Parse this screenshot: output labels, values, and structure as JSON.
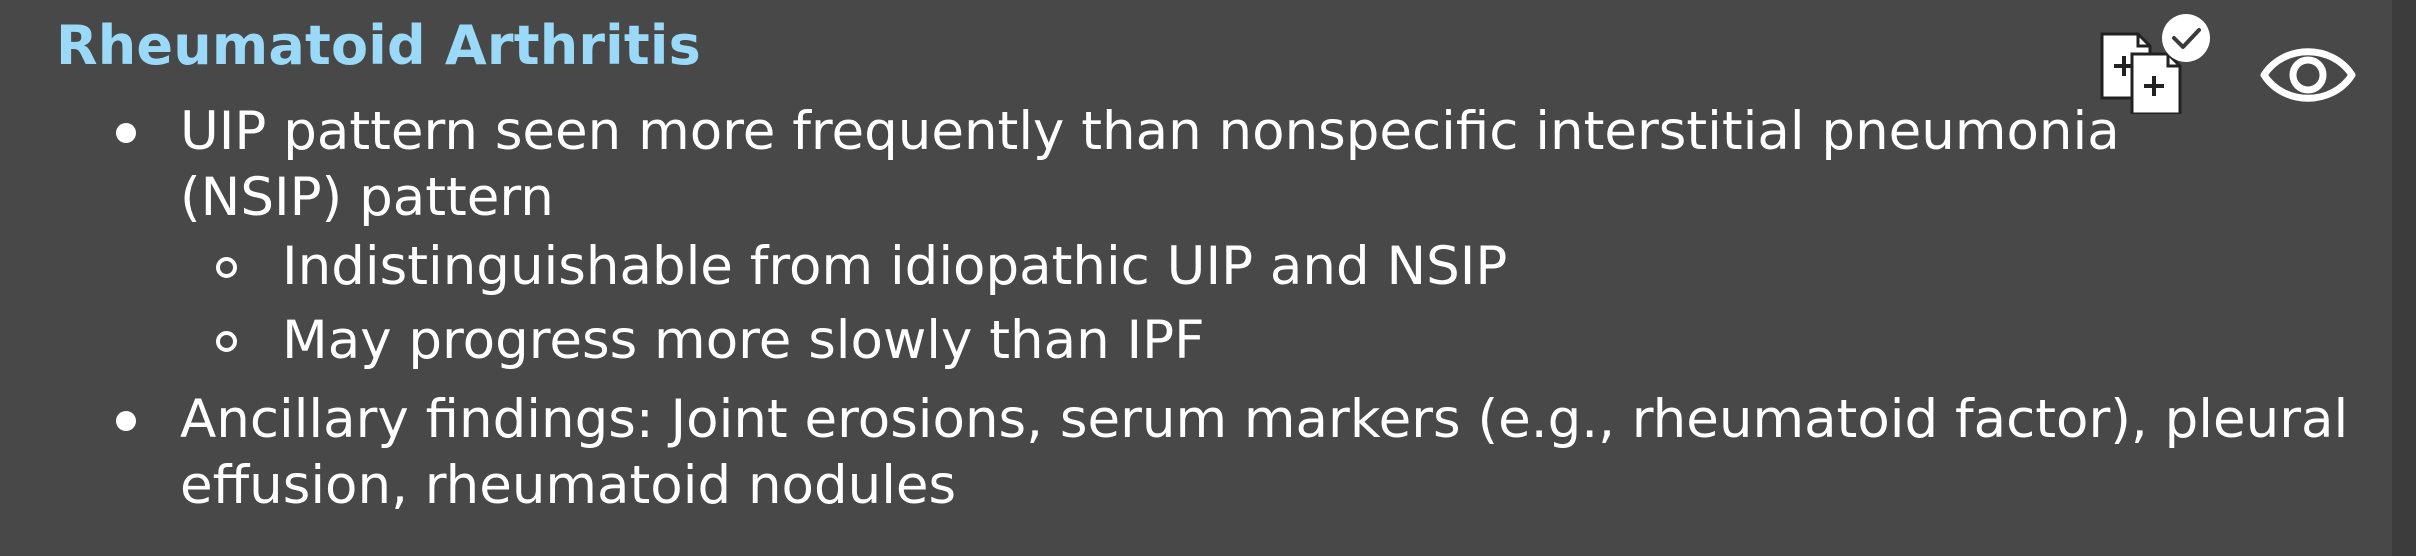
{
  "title": "Rheumatoid Arthritis",
  "bullets": [
    {
      "lines": [
        "UIP pattern seen more frequently than nonspecific interstitial pneumonia",
        "(NSIP) pattern"
      ],
      "subs": [
        "Indistinguishable from idiopathic UIP and NSIP",
        "May progress more slowly than IPF"
      ]
    },
    {
      "lines": [
        "Ancillary findings: Joint erosions, serum markers (e.g., rheumatoid factor), pleural",
        "effusion, rheumatoid nodules"
      ]
    }
  ],
  "icons": {
    "compare": "compare-images-icon",
    "view": "eye-icon"
  },
  "colors": {
    "background": "#484848",
    "title": "#9ad9f8",
    "text": "#ffffff"
  }
}
